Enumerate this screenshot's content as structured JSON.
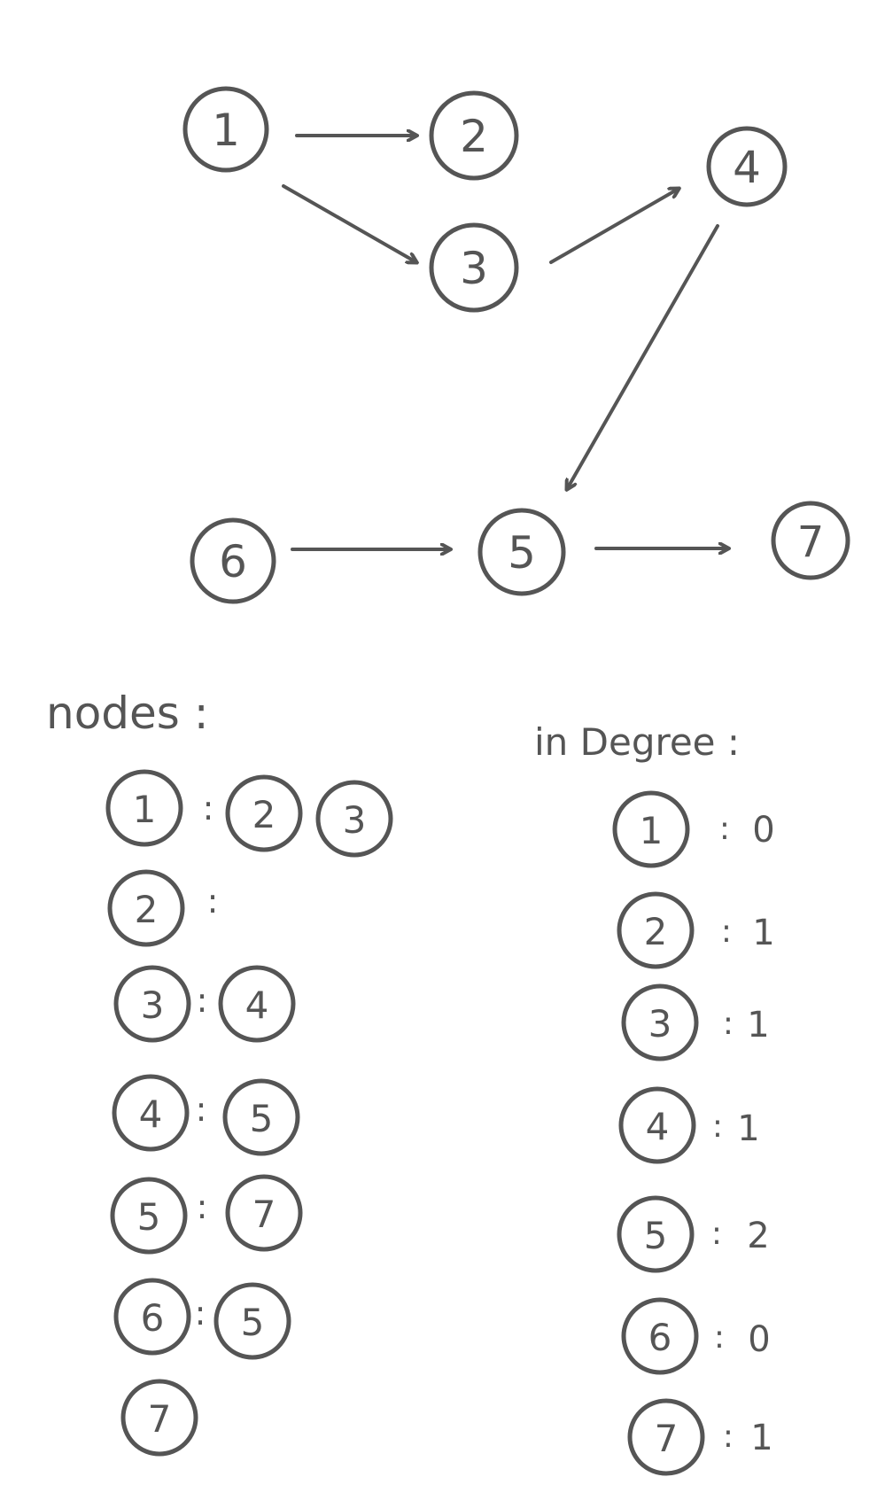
{
  "graph": {
    "nodes": [
      "1",
      "2",
      "3",
      "4",
      "5",
      "6",
      "7"
    ],
    "edges": [
      {
        "from": "1",
        "to": "2"
      },
      {
        "from": "1",
        "to": "3"
      },
      {
        "from": "3",
        "to": "4"
      },
      {
        "from": "4",
        "to": "5"
      },
      {
        "from": "6",
        "to": "5"
      },
      {
        "from": "5",
        "to": "7"
      }
    ]
  },
  "nodes_list": {
    "title": "nodes :",
    "rows": [
      {
        "node": "1",
        "separator": ":",
        "neighbors": [
          "2",
          "3"
        ]
      },
      {
        "node": "2",
        "separator": ":",
        "neighbors": []
      },
      {
        "node": "3",
        "separator": ":",
        "neighbors": [
          "4"
        ]
      },
      {
        "node": "4",
        "separator": ":",
        "neighbors": [
          "5"
        ]
      },
      {
        "node": "5",
        "separator": ":",
        "neighbors": [
          "7"
        ]
      },
      {
        "node": "6",
        "separator": ":",
        "neighbors": [
          "5"
        ]
      },
      {
        "node": "7",
        "separator": "",
        "neighbors": []
      }
    ]
  },
  "in_degree": {
    "title": "in Degree :",
    "rows": [
      {
        "node": "1",
        "value": "0"
      },
      {
        "node": "2",
        "value": "1"
      },
      {
        "node": "3",
        "value": "1"
      },
      {
        "node": "4",
        "value": "1"
      },
      {
        "node": "5",
        "value": "2"
      },
      {
        "node": "6",
        "value": "0"
      },
      {
        "node": "7",
        "value": "1"
      }
    ]
  },
  "colors": {
    "stroke": "#555555",
    "background": "#ffffff"
  }
}
